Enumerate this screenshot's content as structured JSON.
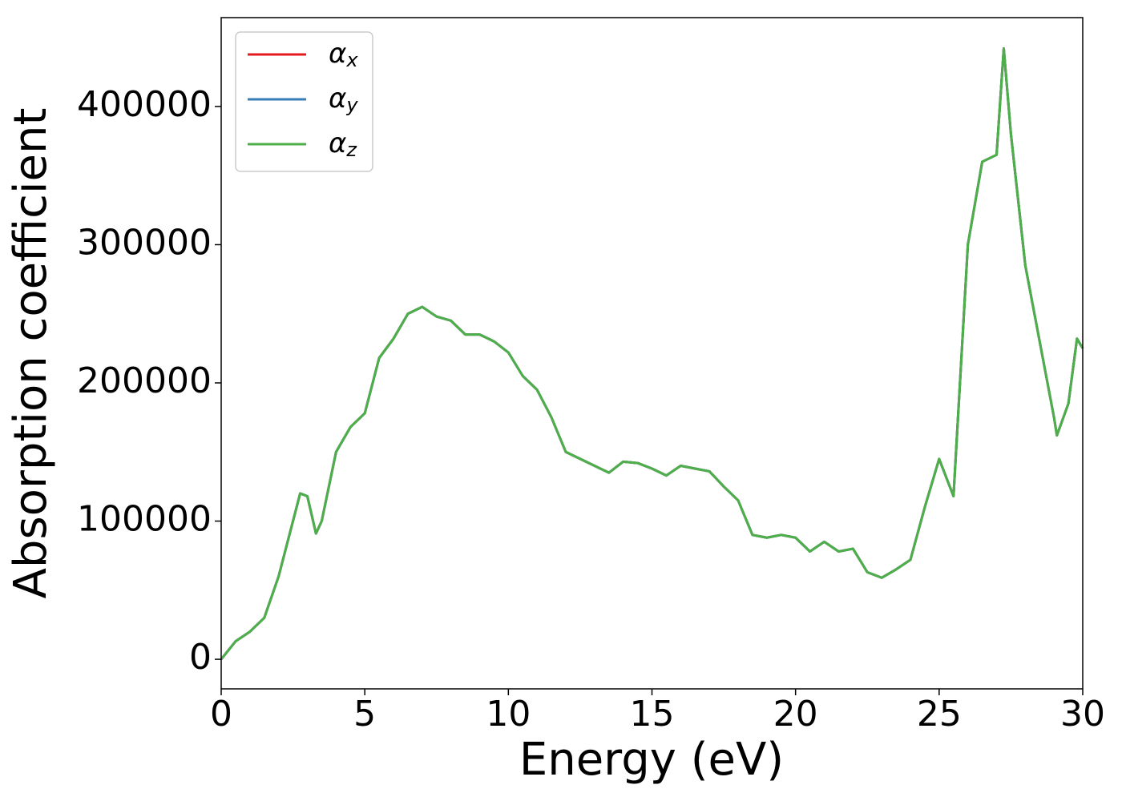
{
  "chart_data": {
    "type": "line",
    "xlabel": "Energy (eV)",
    "ylabel": "Absorption coefficient",
    "x": [
      0,
      0.5,
      1,
      1.5,
      2,
      2.5,
      2.75,
      3,
      3.3,
      3.5,
      4,
      4.5,
      5,
      5.5,
      6,
      6.5,
      7,
      7.5,
      8,
      8.5,
      9,
      9.5,
      10,
      10.5,
      11,
      11.5,
      12,
      12.5,
      13,
      13.5,
      14,
      14.5,
      15,
      15.5,
      16,
      16.5,
      17,
      17.5,
      18,
      18.5,
      19,
      19.5,
      20,
      20.5,
      21,
      21.5,
      22,
      22.5,
      23,
      23.5,
      24,
      24.5,
      25,
      25.5,
      26,
      26.5,
      27,
      27.25,
      27.5,
      28,
      28.5,
      29,
      29.1,
      29.5,
      29.8,
      30
    ],
    "series": [
      {
        "name": "αx",
        "color": "#e41a1c",
        "values": [
          0,
          13000,
          20000,
          30000,
          60000,
          100000,
          120000,
          118000,
          91000,
          100000,
          150000,
          168000,
          178000,
          218000,
          232000,
          250000,
          255000,
          248000,
          245000,
          235000,
          235000,
          230000,
          222000,
          205000,
          195000,
          175000,
          150000,
          145000,
          140000,
          135000,
          143000,
          142000,
          138000,
          133000,
          140000,
          138000,
          136000,
          125000,
          115000,
          90000,
          88000,
          90000,
          88000,
          78000,
          85000,
          78000,
          80000,
          63000,
          59000,
          65000,
          72000,
          110000,
          145000,
          118000,
          300000,
          360000,
          365000,
          442000,
          380000,
          285000,
          230000,
          175000,
          162000,
          185000,
          232000,
          225000
        ]
      },
      {
        "name": "αy",
        "color": "#377eb8",
        "values": [
          0,
          13000,
          20000,
          30000,
          60000,
          100000,
          120000,
          118000,
          91000,
          100000,
          150000,
          168000,
          178000,
          218000,
          232000,
          250000,
          255000,
          248000,
          245000,
          235000,
          235000,
          230000,
          222000,
          205000,
          195000,
          175000,
          150000,
          145000,
          140000,
          135000,
          143000,
          142000,
          138000,
          133000,
          140000,
          138000,
          136000,
          125000,
          115000,
          90000,
          88000,
          90000,
          88000,
          78000,
          85000,
          78000,
          80000,
          63000,
          59000,
          65000,
          72000,
          110000,
          145000,
          118000,
          300000,
          360000,
          365000,
          442000,
          380000,
          285000,
          230000,
          175000,
          162000,
          185000,
          232000,
          225000
        ]
      },
      {
        "name": "αz",
        "color": "#4daf4a",
        "values": [
          0,
          13000,
          20000,
          30000,
          60000,
          100000,
          120000,
          118000,
          91000,
          100000,
          150000,
          168000,
          178000,
          218000,
          232000,
          250000,
          255000,
          248000,
          245000,
          235000,
          235000,
          230000,
          222000,
          205000,
          195000,
          175000,
          150000,
          145000,
          140000,
          135000,
          143000,
          142000,
          138000,
          133000,
          140000,
          138000,
          136000,
          125000,
          115000,
          90000,
          88000,
          90000,
          88000,
          78000,
          85000,
          78000,
          80000,
          63000,
          59000,
          65000,
          72000,
          110000,
          145000,
          118000,
          300000,
          360000,
          365000,
          442000,
          380000,
          285000,
          230000,
          175000,
          162000,
          185000,
          232000,
          225000
        ]
      }
    ],
    "xlim": [
      0,
      30
    ],
    "xticks": [
      0,
      5,
      10,
      15,
      20,
      25,
      30
    ],
    "ylim": [
      -21400,
      464300
    ],
    "yticks": [
      0,
      100000,
      200000,
      300000,
      400000
    ],
    "legend": "upper left",
    "grid": false
  }
}
